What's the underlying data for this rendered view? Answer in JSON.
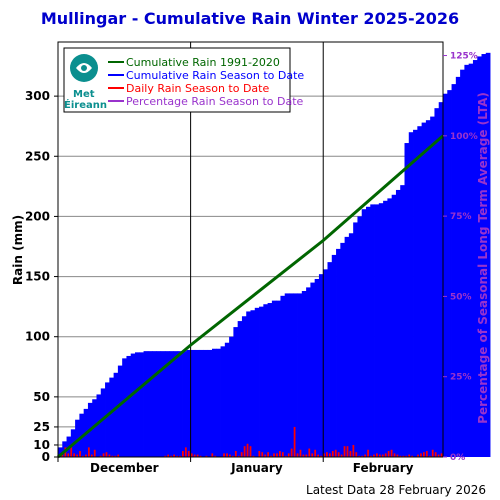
{
  "chart_data": {
    "type": "bar",
    "title": "Mullingar - Cumulative Rain Winter 2025-2026",
    "ylabel": "Rain (mm)",
    "ylabel_right": "Percentage  of Seasonal Long Term Average (LTA)",
    "ylim": [
      0,
      345
    ],
    "yticks": [
      0,
      10,
      25,
      50,
      100,
      150,
      200,
      250,
      300
    ],
    "yticks_right": [
      "0%",
      "25%",
      "50%",
      "75%",
      "100%",
      "125%"
    ],
    "yticks_right_values": [
      0,
      25,
      50,
      75,
      100,
      125
    ],
    "lta_total_mm": 267,
    "months": [
      "December",
      "January",
      "February"
    ],
    "month_days": [
      31,
      31,
      28
    ],
    "grid": true,
    "legend_position": "top-left",
    "legend": [
      {
        "label": "Cumulative Rain 1991-2020",
        "color": "#006600"
      },
      {
        "label": "Cumulative Rain Season to Date",
        "color": "#0000ff"
      },
      {
        "label": "Daily Rain Season to Date",
        "color": "#ff0000"
      },
      {
        "label": "Percentage Rain Season to Date",
        "color": "#9933cc"
      }
    ],
    "series": [
      {
        "name": "Daily Rain Season to Date",
        "color": "#ff0000",
        "values": [
          2,
          4,
          8,
          3,
          9,
          3,
          2,
          5,
          1,
          2,
          8,
          2,
          6,
          0,
          1,
          3,
          4,
          2,
          1,
          1,
          2,
          0,
          0,
          0,
          0,
          0,
          0,
          0,
          0,
          0,
          0,
          0,
          0,
          0,
          0,
          0,
          1,
          2,
          1,
          2,
          1,
          1,
          5,
          8,
          5,
          3,
          2,
          2,
          1,
          0,
          1,
          0,
          3,
          1,
          0,
          0,
          3,
          3,
          2,
          1,
          5,
          1,
          4,
          9,
          11,
          9,
          1,
          0,
          5,
          4,
          2,
          4,
          1,
          3,
          3,
          5,
          4,
          1,
          3,
          7,
          25,
          3,
          6,
          2,
          2,
          7,
          3,
          6,
          2,
          1,
          3,
          4,
          3,
          5,
          6,
          4,
          2,
          9,
          9,
          5,
          10,
          4,
          1,
          1,
          2,
          6,
          1,
          2,
          3,
          2,
          2,
          3,
          5,
          6,
          3,
          2,
          1,
          1,
          1,
          2,
          1,
          0,
          2,
          3,
          4,
          5,
          1,
          6,
          4,
          2,
          3
        ]
      },
      {
        "name": "Cumulative Rain Season to Date",
        "color": "#0000ff",
        "values": [
          8,
          13,
          17,
          23,
          31,
          36,
          40,
          45,
          48,
          52,
          57,
          62,
          66,
          70,
          76,
          82,
          84,
          86,
          87,
          87,
          88,
          88,
          88,
          88,
          88,
          88,
          88,
          88,
          88,
          88,
          89,
          89,
          89,
          89,
          89,
          89,
          90,
          90,
          92,
          95,
          100,
          108,
          113,
          117,
          121,
          122,
          124,
          125,
          127,
          128,
          130,
          130,
          134,
          136,
          136,
          136,
          136,
          138,
          141,
          145,
          148,
          152,
          156,
          162,
          168,
          173,
          178,
          183,
          186,
          195,
          200,
          206,
          208,
          210,
          210,
          211,
          213,
          215,
          218,
          222,
          226,
          261,
          270,
          272,
          275,
          278,
          280,
          283,
          290,
          295,
          302,
          305,
          310,
          316,
          322,
          326,
          327,
          330,
          333,
          335,
          336
        ]
      },
      {
        "name": "Cumulative Rain 1991-2020",
        "color": "#006600",
        "x_days": [
          0,
          31,
          62,
          90
        ],
        "values": [
          0,
          93,
          180,
          267
        ]
      }
    ]
  },
  "logo": {
    "line1": "Met",
    "line2": "Éireann"
  },
  "footer": "Latest Data 28 February 2026"
}
